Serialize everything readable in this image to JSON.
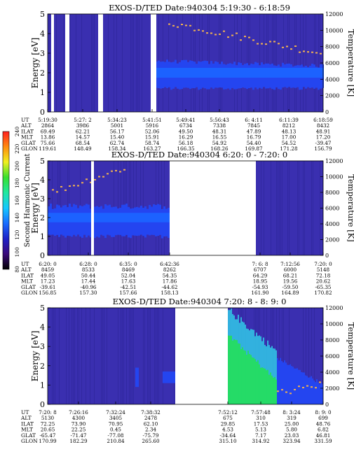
{
  "colors": {
    "bg": "#ffffff",
    "field": "#3a2fb0",
    "band": "#2445f0",
    "band_core": "#1c62ff",
    "gap": "#ffffff",
    "green": "#23e05a",
    "cyan": "#31c8e8",
    "dots": "#f0b050"
  },
  "colorbar": {
    "label": "Second Harmonic Current",
    "ticks": [
      "240",
      "220",
      "200",
      "180",
      "160",
      "140",
      "120",
      "100",
      "80"
    ],
    "stops": [
      "#000000",
      "#3a0a7a",
      "#1e22c8",
      "#1a6cff",
      "#16c8ff",
      "#20e8a0",
      "#38e030",
      "#f0f020",
      "#ff8c10",
      "#ff2020"
    ]
  },
  "chart_data": [
    {
      "type": "heatmap",
      "title": "EXOS-D/TED   Date:940304   5:19:30 - 6:18:59",
      "ylabel": "Energy [eV]",
      "y2label": "Temperature [K]",
      "ylim": [
        0,
        5
      ],
      "y2lim": [
        0,
        12000
      ],
      "yticks": [
        "0",
        "1",
        "2",
        "3",
        "4",
        "5"
      ],
      "y2ticks": [
        "0",
        "2000",
        "4000",
        "6000",
        "8000",
        "10000",
        "12000"
      ],
      "row_labels": [
        "UT",
        "ALT",
        "ILAT",
        "MLT",
        "GLAT",
        "GLON"
      ],
      "columns": [
        [
          "5:19:30",
          "2864",
          "69.49",
          "13.86",
          "75.66",
          "119.61"
        ],
        [
          "5:27: 2",
          "3986",
          "62.21",
          "14.57",
          "68.54",
          "148.49"
        ],
        [
          "5:34:23",
          "5001",
          "56.17",
          "15.40",
          "62.74",
          "158.34"
        ],
        [
          "5:41:51",
          "5916",
          "52.06",
          "15.91",
          "58.74",
          "163.27"
        ],
        [
          "5:49:41",
          "6734",
          "49.50",
          "16.29",
          "56.18",
          "166.35"
        ],
        [
          "5:56:43",
          "7338",
          "48.31",
          "16.55",
          "54.92",
          "168.26"
        ],
        [
          "6: 4:11",
          "7845",
          "47.89",
          "16.79",
          "54.40",
          "169.87"
        ],
        [
          "6:11:39",
          "8212",
          "48.13",
          "17.00",
          "54.52",
          "171.28"
        ],
        [
          "6:18:59",
          "8432",
          "48.91",
          "17.20",
          "-39.47",
          "156.79"
        ]
      ]
    },
    {
      "type": "heatmap",
      "title": "EXOS-D/TED   Date:940304   6:20: 0 - 7:20: 0",
      "ylabel": "Energy [eV]",
      "y2label": "Temperature [K]",
      "ylim": [
        0,
        5
      ],
      "y2lim": [
        0,
        12000
      ],
      "yticks": [
        "0",
        "1",
        "2",
        "3",
        "4",
        "5"
      ],
      "y2ticks": [
        "0",
        "2000",
        "4000",
        "6000",
        "8000",
        "10000",
        "12000"
      ],
      "row_labels": [
        "UT",
        "ALT",
        "ILAT",
        "MLT",
        "GLAT",
        "GLON"
      ],
      "columns": [
        [
          "6:20: 0",
          "8459",
          "49.05",
          "17.23",
          "-39.61",
          "156.85"
        ],
        [
          "6:28: 0",
          "8533",
          "50.44",
          "17.44",
          "-40.96",
          "157.30"
        ],
        [
          "6:35: 0",
          "8469",
          "52.04",
          "17.63",
          "-42.51",
          "157.66"
        ],
        [
          "6:42:36",
          "8262",
          "54.35",
          "17.86",
          "-44.62",
          "158.13"
        ],
        [
          "7: 6: 8",
          "6707",
          "64.29",
          "18.95",
          "-54.93",
          "161.90"
        ],
        [
          "7:12:56",
          "6000",
          "68.21",
          "19.56",
          "-59.50",
          "164.89"
        ],
        [
          "7:20: 0",
          "5148",
          "72.18",
          "20.62",
          "-65.35",
          "170.82"
        ]
      ]
    },
    {
      "type": "heatmap",
      "title": "EXOS-D/TED   Date:940304   7:20: 8 - 8: 9: 0",
      "ylabel": "Energy [eV]",
      "y2label": "Temperature [K]",
      "ylim": [
        0,
        5
      ],
      "y2lim": [
        0,
        12000
      ],
      "yticks": [
        "0",
        "1",
        "2",
        "3",
        "4",
        "5"
      ],
      "y2ticks": [
        "0",
        "2000",
        "4000",
        "6000",
        "8000",
        "10000",
        "12000"
      ],
      "row_labels": [
        "UT",
        "ALT",
        "ILAT",
        "MLT",
        "GLAT",
        "GLON"
      ],
      "columns": [
        [
          "7:20: 8",
          "5130",
          "72.25",
          "20.65",
          "-65.47",
          "170.99"
        ],
        [
          "7:26:16",
          "4300",
          "73.90",
          "22.25",
          "-71.47",
          "182.29"
        ],
        [
          "7:32:24",
          "3405",
          "70.95",
          "0.45",
          "-77.08",
          "210.84"
        ],
        [
          "7:38:32",
          "2478",
          "62.10",
          "2.34",
          "-75.79",
          "265.60"
        ],
        [
          "7:52:12",
          "675",
          "29.85",
          "4.53",
          "-34.64",
          "315.10"
        ],
        [
          "7:57:48",
          "310",
          "17.53",
          "5.13",
          "7.17",
          "314.92"
        ],
        [
          "8: 3:24",
          "319",
          "25.00",
          "5.80",
          "23.03",
          "323.94"
        ],
        [
          "8: 9: 0",
          "699",
          "48.76",
          "6.82",
          "46.81",
          "331.59"
        ]
      ]
    }
  ]
}
